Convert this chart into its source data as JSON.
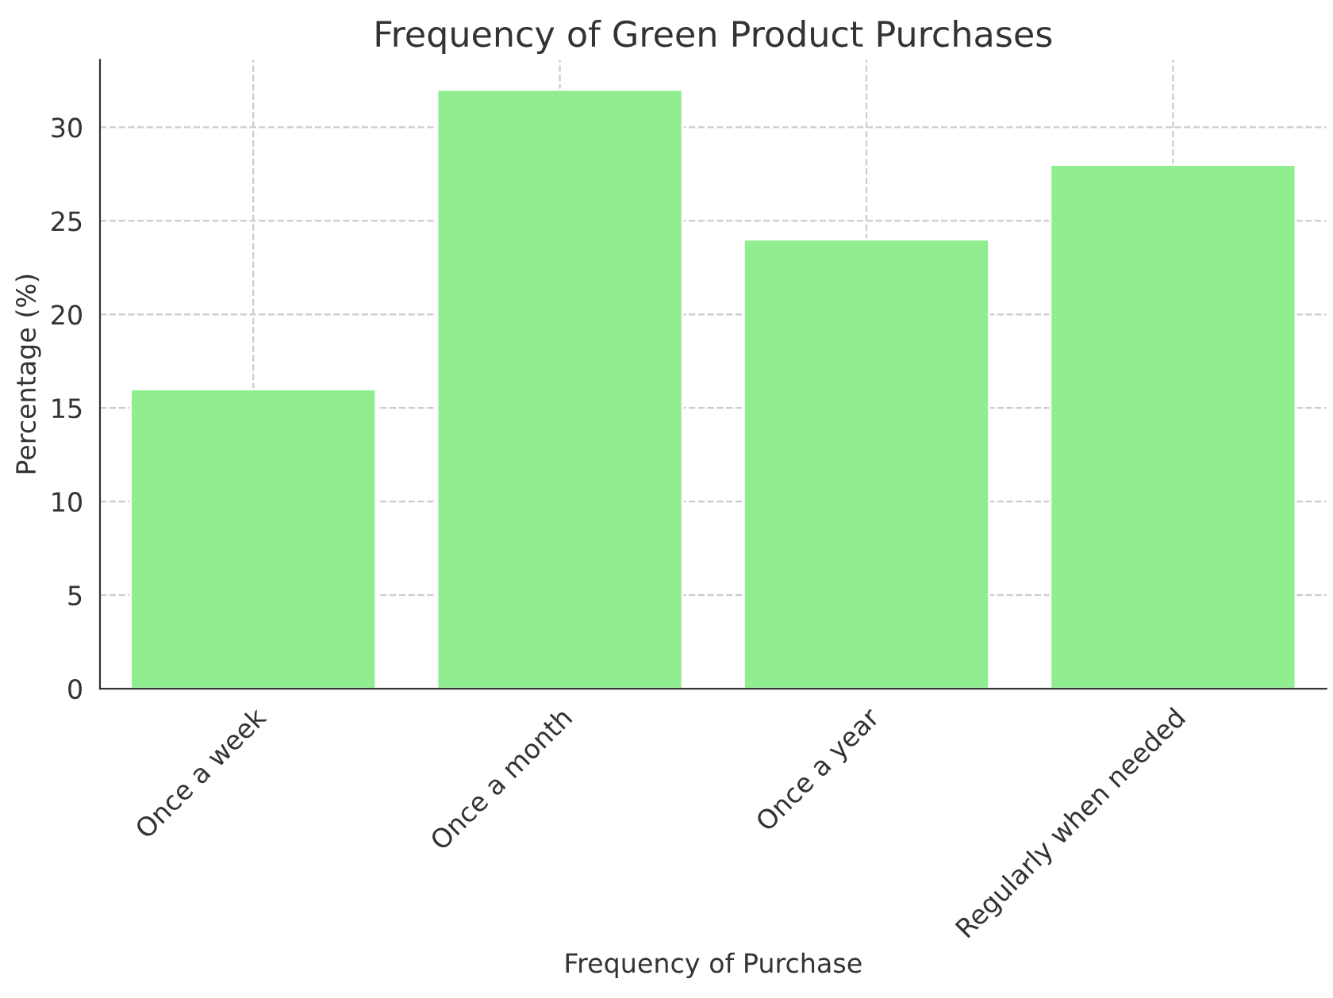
{
  "chart_data": {
    "type": "bar",
    "title": "Frequency of Green Product Purchases",
    "xlabel": "Frequency of Purchase",
    "ylabel": "Percentage (%)",
    "categories": [
      "Once a week",
      "Once a month",
      "Once a year",
      "Regularly when needed"
    ],
    "values": [
      16,
      32,
      24,
      28
    ],
    "color": "#90ee90",
    "ylim": [
      0,
      33.6
    ],
    "yticks": [
      0,
      5,
      10,
      15,
      20,
      25,
      30
    ],
    "grid": true
  }
}
